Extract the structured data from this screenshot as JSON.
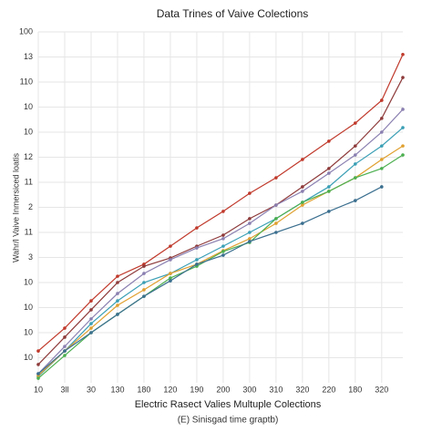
{
  "chart_data": {
    "type": "line",
    "title": "Data Trines of Vaive Colections",
    "x_label": "Electric Rasect Valies Multuple Colections",
    "y_label": "Wahr/l Vaive Inmersiced loatis",
    "caption": "(E) Sinisgad time graptb)",
    "grid": true,
    "xlim": [
      0,
      13.8
    ],
    "ylim": [
      0,
      14
    ],
    "xticks": [
      {
        "value": 0,
        "label": "10"
      },
      {
        "value": 1,
        "label": "3ll"
      },
      {
        "value": 2,
        "label": "30"
      },
      {
        "value": 3,
        "label": "130"
      },
      {
        "value": 4,
        "label": "180"
      },
      {
        "value": 5,
        "label": "120"
      },
      {
        "value": 6,
        "label": "190"
      },
      {
        "value": 7,
        "label": "200"
      },
      {
        "value": 8,
        "label": "300"
      },
      {
        "value": 9,
        "label": "310"
      },
      {
        "value": 10,
        "label": "320"
      },
      {
        "value": 11,
        "label": "220"
      },
      {
        "value": 12,
        "label": "180"
      },
      {
        "value": 13,
        "label": "320"
      }
    ],
    "yticks": [
      {
        "value": 1,
        "label": "10"
      },
      {
        "value": 2,
        "label": "10"
      },
      {
        "value": 3,
        "label": "10"
      },
      {
        "value": 4,
        "label": "10"
      },
      {
        "value": 5,
        "label": "3"
      },
      {
        "value": 6,
        "label": "11"
      },
      {
        "value": 7,
        "label": "2"
      },
      {
        "value": 8,
        "label": "11"
      },
      {
        "value": 9,
        "label": "12"
      },
      {
        "value": 10,
        "label": "10"
      },
      {
        "value": 11,
        "label": "10"
      },
      {
        "value": 12,
        "label": "110"
      },
      {
        "value": 13,
        "label": "13"
      },
      {
        "value": 14,
        "label": "100"
      }
    ],
    "x": [
      0,
      1,
      2,
      3,
      4,
      5,
      6,
      7,
      8,
      9,
      10,
      11,
      12,
      13,
      13.8
    ],
    "series": [
      {
        "color": "#c0392b",
        "values": [
          1.27,
          2.18,
          3.27,
          4.25,
          4.73,
          5.45,
          6.18,
          6.84,
          7.56,
          8.18,
          8.91,
          9.64,
          10.36,
          11.27,
          13.1
        ]
      },
      {
        "color": "#8e3a3a",
        "values": [
          0.73,
          1.82,
          2.91,
          4.0,
          4.65,
          4.98,
          5.45,
          5.89,
          6.55,
          7.09,
          7.82,
          8.55,
          9.45,
          10.55,
          12.18
        ]
      },
      {
        "color": "#8a7fb0",
        "values": [
          0.36,
          1.45,
          2.55,
          3.56,
          4.36,
          4.91,
          5.38,
          5.75,
          6.36,
          7.09,
          7.64,
          8.36,
          9.09,
          10.0,
          10.91
        ]
      },
      {
        "color": "#3a9fb5",
        "values": [
          0.25,
          1.27,
          2.36,
          3.27,
          4.0,
          4.36,
          4.91,
          5.45,
          6.0,
          6.55,
          7.2,
          7.82,
          8.73,
          9.45,
          10.18
        ]
      },
      {
        "color": "#e0a030",
        "values": [
          0.29,
          1.27,
          2.18,
          3.09,
          3.71,
          4.36,
          4.73,
          5.27,
          5.75,
          6.36,
          7.09,
          7.64,
          8.18,
          8.91,
          9.45
        ]
      },
      {
        "color": "#4caf50",
        "values": [
          0.18,
          1.09,
          2.0,
          2.73,
          3.45,
          4.18,
          4.65,
          5.24,
          5.6,
          6.55,
          7.2,
          7.64,
          8.18,
          8.55,
          9.09
        ]
      },
      {
        "color": "#3b6f8f",
        "values": [
          0.36,
          1.27,
          2.0,
          2.73,
          3.45,
          4.07,
          4.73,
          5.09,
          5.64,
          6.0,
          6.36,
          6.84,
          7.27,
          7.82,
          null
        ]
      }
    ]
  }
}
